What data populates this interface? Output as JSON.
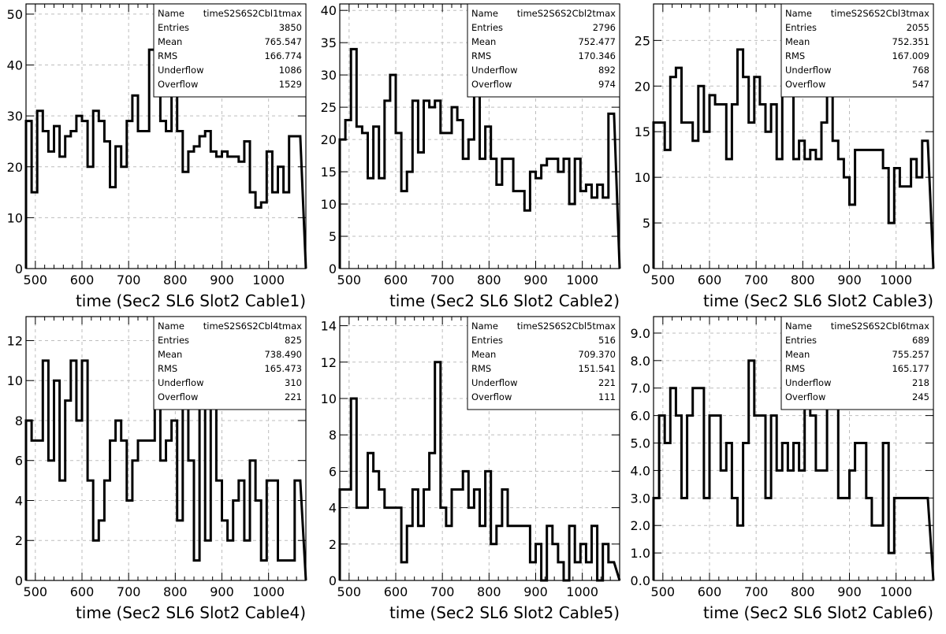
{
  "charts": [
    {
      "chart_data": {
        "type": "bar",
        "xlabel": "time (Sec2 SL6 Slot2 Cable1)",
        "xlim": [
          480,
          1080
        ],
        "ylim": [
          0,
          52
        ],
        "yticks": [
          0,
          10,
          20,
          30,
          40,
          50
        ],
        "ytick_labels": [
          "0",
          "10",
          "20",
          "30",
          "40",
          "50"
        ],
        "xticks": [
          500,
          600,
          700,
          800,
          900,
          1000
        ],
        "xtick_labels": [
          "500",
          "600",
          "700",
          "800",
          "900",
          "1000"
        ],
        "grid": true,
        "bin_start": 480,
        "bin_width": 12,
        "values": [
          29,
          15,
          31,
          27,
          23,
          28,
          22,
          26,
          27,
          30,
          29,
          20,
          31,
          29,
          25,
          16,
          24,
          20,
          29,
          34,
          27,
          27,
          43,
          37,
          29,
          27,
          34,
          27,
          19,
          23,
          24,
          26,
          27,
          23,
          22,
          23,
          22,
          22,
          21,
          25,
          15,
          12,
          13,
          23,
          15,
          20,
          15,
          26,
          26
        ],
        "stats": [
          {
            "label": "Name",
            "value": "timeS2S6S2Cbl1tmax"
          },
          {
            "label": "Entries",
            "value": "3850"
          },
          {
            "label": "Mean",
            "value": "765.547"
          },
          {
            "label": "RMS",
            "value": "166.774"
          },
          {
            "label": "Underflow",
            "value": "1086"
          },
          {
            "label": "Overflow",
            "value": "1529"
          }
        ]
      }
    },
    {
      "chart_data": {
        "type": "bar",
        "xlabel": "time (Sec2 SL6 Slot2 Cable2)",
        "xlim": [
          480,
          1080
        ],
        "ylim": [
          0,
          41
        ],
        "yticks": [
          0,
          5,
          10,
          15,
          20,
          25,
          30,
          35,
          40
        ],
        "ytick_labels": [
          "0",
          "5",
          "10",
          "15",
          "20",
          "25",
          "30",
          "35",
          "40"
        ],
        "xticks": [
          500,
          600,
          700,
          800,
          900,
          1000
        ],
        "xtick_labels": [
          "500",
          "600",
          "700",
          "800",
          "900",
          "1000"
        ],
        "grid": true,
        "bin_start": 480,
        "bin_width": 12,
        "values": [
          20,
          23,
          34,
          22,
          21,
          14,
          22,
          14,
          26,
          30,
          21,
          12,
          15,
          26,
          18,
          26,
          25,
          26,
          21,
          21,
          25,
          23,
          17,
          20,
          29,
          17,
          22,
          17,
          13,
          17,
          17,
          12,
          12,
          9,
          15,
          14,
          16,
          17,
          17,
          15,
          17,
          10,
          17,
          12,
          13,
          11,
          13,
          11,
          24
        ],
        "stats": [
          {
            "label": "Name",
            "value": "timeS2S6S2Cbl2tmax"
          },
          {
            "label": "Entries",
            "value": "2796"
          },
          {
            "label": "Mean",
            "value": "752.477"
          },
          {
            "label": "RMS",
            "value": "170.346"
          },
          {
            "label": "Underflow",
            "value": "892"
          },
          {
            "label": "Overflow",
            "value": "974"
          }
        ]
      }
    },
    {
      "chart_data": {
        "type": "bar",
        "xlabel": "time (Sec2 SL6 Slot2 Cable3)",
        "xlim": [
          480,
          1080
        ],
        "ylim": [
          0,
          29
        ],
        "yticks": [
          0,
          5,
          10,
          15,
          20,
          25
        ],
        "ytick_labels": [
          "0",
          "5",
          "10",
          "15",
          "20",
          "25"
        ],
        "xticks": [
          500,
          600,
          700,
          800,
          900,
          1000
        ],
        "xtick_labels": [
          "500",
          "600",
          "700",
          "800",
          "900",
          "1000"
        ],
        "grid": true,
        "bin_start": 480,
        "bin_width": 12,
        "values": [
          16,
          16,
          13,
          21,
          22,
          16,
          16,
          14,
          20,
          15,
          19,
          18,
          18,
          12,
          18,
          24,
          21,
          16,
          21,
          18,
          15,
          18,
          12,
          22,
          19,
          12,
          14,
          12,
          13,
          12,
          16,
          19,
          14,
          12,
          10,
          7,
          13,
          13,
          13,
          13,
          13,
          11,
          5,
          11,
          9,
          9,
          12,
          10,
          14
        ],
        "stats": [
          {
            "label": "Name",
            "value": "timeS2S6S2Cbl3tmax"
          },
          {
            "label": "Entries",
            "value": "2055"
          },
          {
            "label": "Mean",
            "value": "752.351"
          },
          {
            "label": "RMS",
            "value": "167.009"
          },
          {
            "label": "Underflow",
            "value": "768"
          },
          {
            "label": "Overflow",
            "value": "547"
          }
        ]
      }
    },
    {
      "chart_data": {
        "type": "bar",
        "xlabel": "time (Sec2 SL6 Slot2 Cable4)",
        "xlim": [
          480,
          1080
        ],
        "ylim": [
          0,
          13.2
        ],
        "yticks": [
          0,
          2,
          4,
          6,
          8,
          10,
          12
        ],
        "ytick_labels": [
          "0",
          "2",
          "4",
          "6",
          "8",
          "10",
          "12"
        ],
        "xticks": [
          500,
          600,
          700,
          800,
          900,
          1000
        ],
        "xtick_labels": [
          "500",
          "600",
          "700",
          "800",
          "900",
          "1000"
        ],
        "grid": true,
        "bin_start": 480,
        "bin_width": 12,
        "values": [
          8,
          7,
          7,
          11,
          6,
          10,
          5,
          9,
          11,
          8,
          11,
          5,
          2,
          3,
          5,
          7,
          8,
          7,
          4,
          6,
          7,
          7,
          7,
          9,
          6,
          7,
          8,
          3,
          9,
          6,
          1,
          9,
          2,
          9,
          5,
          3,
          2,
          4,
          5,
          2,
          6,
          4,
          1,
          5,
          5,
          1,
          1,
          1,
          5
        ],
        "stats": [
          {
            "label": "Name",
            "value": "timeS2S6S2Cbl4tmax"
          },
          {
            "label": "Entries",
            "value": "825"
          },
          {
            "label": "Mean",
            "value": "738.490"
          },
          {
            "label": "RMS",
            "value": "165.473"
          },
          {
            "label": "Underflow",
            "value": "310"
          },
          {
            "label": "Overflow",
            "value": "221"
          }
        ]
      }
    },
    {
      "chart_data": {
        "type": "bar",
        "xlabel": "time (Sec2 SL6 Slot2 Cable5)",
        "xlim": [
          480,
          1080
        ],
        "ylim": [
          0,
          14.5
        ],
        "yticks": [
          0,
          2,
          4,
          6,
          8,
          10,
          12,
          14
        ],
        "ytick_labels": [
          "0",
          "2",
          "4",
          "6",
          "8",
          "10",
          "12",
          "14"
        ],
        "xticks": [
          500,
          600,
          700,
          800,
          900,
          1000
        ],
        "xtick_labels": [
          "500",
          "600",
          "700",
          "800",
          "900",
          "1000"
        ],
        "grid": true,
        "bin_start": 480,
        "bin_width": 12,
        "values": [
          5,
          5,
          10,
          4,
          4,
          7,
          6,
          5,
          4,
          4,
          4,
          1,
          3,
          5,
          3,
          5,
          7,
          12,
          4,
          3,
          5,
          5,
          6,
          4,
          5,
          3,
          6,
          2,
          3,
          5,
          3,
          3,
          3,
          3,
          1,
          2,
          0,
          3,
          2,
          1,
          0,
          3,
          1,
          2,
          1,
          3,
          0,
          2,
          1
        ],
        "stats": [
          {
            "label": "Name",
            "value": "timeS2S6S2Cbl5tmax"
          },
          {
            "label": "Entries",
            "value": "516"
          },
          {
            "label": "Mean",
            "value": "709.370"
          },
          {
            "label": "RMS",
            "value": "151.541"
          },
          {
            "label": "Underflow",
            "value": "221"
          },
          {
            "label": "Overflow",
            "value": "111"
          }
        ]
      }
    },
    {
      "chart_data": {
        "type": "bar",
        "xlabel": "time (Sec2 SL6 Slot2 Cable6)",
        "xlim": [
          480,
          1080
        ],
        "ylim": [
          0,
          9.6
        ],
        "yticks": [
          0,
          1,
          2,
          3,
          4,
          5,
          6,
          7,
          8,
          9
        ],
        "ytick_labels": [
          "0.0",
          "1.0",
          "2.0",
          "3.0",
          "4.0",
          "5.0",
          "6.0",
          "7.0",
          "8.0",
          "9.0"
        ],
        "xticks": [
          500,
          600,
          700,
          800,
          900,
          1000
        ],
        "xtick_labels": [
          "500",
          "600",
          "700",
          "800",
          "900",
          "1000"
        ],
        "grid": true,
        "bin_start": 480,
        "bin_width": 12,
        "values": [
          3,
          6,
          5,
          7,
          6,
          3,
          6,
          7,
          7,
          3,
          6,
          6,
          4,
          5,
          3,
          2,
          5,
          8,
          6,
          6,
          3,
          6,
          4,
          5,
          4,
          5,
          4,
          8,
          6,
          4,
          4,
          7,
          7,
          3,
          3,
          4,
          5,
          5,
          3,
          2,
          2,
          5,
          1,
          3,
          3,
          3,
          3,
          3,
          3
        ],
        "stats": [
          {
            "label": "Name",
            "value": "timeS2S6S2Cbl6tmax"
          },
          {
            "label": "Entries",
            "value": "689"
          },
          {
            "label": "Mean",
            "value": "755.257"
          },
          {
            "label": "RMS",
            "value": "165.177"
          },
          {
            "label": "Underflow",
            "value": "218"
          },
          {
            "label": "Overflow",
            "value": "245"
          }
        ]
      }
    }
  ]
}
